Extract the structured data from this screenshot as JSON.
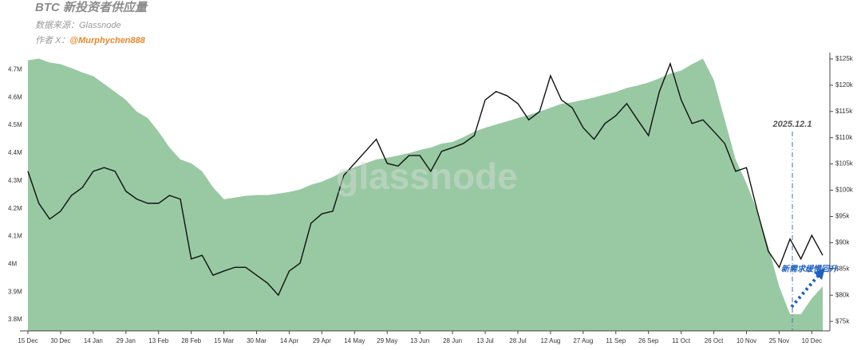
{
  "chart_data": {
    "type": "area",
    "title": "BTC 新投资者供应量",
    "source_label": "数据来源：",
    "source": "Glassnode",
    "author_label": "作者 X：",
    "author": "@Murphychen888",
    "watermark": "glassnode",
    "annotations": [
      "2025.12.1",
      "新需求缓慢回升"
    ],
    "categories": [
      "15 Dec",
      null,
      null,
      "30 Dec",
      null,
      null,
      "14 Jan",
      null,
      null,
      "29 Jan",
      null,
      null,
      "13 Feb",
      null,
      null,
      "28 Feb",
      null,
      null,
      "15 Mar",
      null,
      null,
      "30 Mar",
      null,
      null,
      "14 Apr",
      null,
      null,
      "29 Apr",
      null,
      null,
      "14 May",
      null,
      null,
      "29 May",
      null,
      null,
      "13 Jun",
      null,
      null,
      "28 Jun",
      null,
      null,
      "13 Jul",
      null,
      null,
      "28 Jul",
      null,
      null,
      "12 Aug",
      null,
      null,
      "27 Aug",
      null,
      null,
      "11 Sep",
      null,
      null,
      "26 Sep",
      null,
      null,
      "11 Oct",
      null,
      null,
      "26 Oct",
      null,
      null,
      "10 Nov",
      null,
      null,
      "25 Nov",
      null,
      null,
      "10 Dec",
      null
    ],
    "series": [
      {
        "type": "area",
        "color": "#98c9a3",
        "values": [
          4.734,
          4.74,
          4.726,
          4.72,
          4.706,
          4.69,
          4.677,
          4.649,
          4.62,
          4.591,
          4.549,
          4.526,
          4.477,
          4.42,
          4.377,
          4.363,
          4.334,
          4.277,
          4.234,
          4.24,
          4.246,
          4.249,
          4.249,
          4.254,
          4.26,
          4.269,
          4.286,
          4.297,
          4.314,
          4.334,
          4.349,
          4.363,
          4.377,
          4.383,
          4.391,
          4.4,
          4.411,
          4.42,
          4.434,
          4.44,
          4.457,
          4.477,
          4.491,
          4.503,
          4.514,
          4.526,
          4.537,
          4.549,
          4.563,
          4.577,
          4.583,
          4.591,
          4.6,
          4.611,
          4.62,
          4.634,
          4.643,
          4.654,
          4.669,
          4.686,
          4.697,
          4.72,
          4.74,
          4.663,
          4.52,
          4.377,
          4.291,
          4.191,
          4.063,
          3.92,
          3.82,
          3.82,
          3.877,
          3.92
        ]
      },
      {
        "type": "line",
        "axis": "y2",
        "color": "#111111",
        "values": [
          103.6,
          97.5,
          94.5,
          96.0,
          99.0,
          100.5,
          103.6,
          104.3,
          103.6,
          99.8,
          98.3,
          97.5,
          97.5,
          99.0,
          98.3,
          86.9,
          87.6,
          83.8,
          84.6,
          85.3,
          85.3,
          83.8,
          82.3,
          80.0,
          84.6,
          86.1,
          93.7,
          95.5,
          96.0,
          102.8,
          105.1,
          107.4,
          109.7,
          105.1,
          104.6,
          106.6,
          106.6,
          103.6,
          107.4,
          108.1,
          108.9,
          110.4,
          117.2,
          118.8,
          118.0,
          116.5,
          113.4,
          115.0,
          121.8,
          117.2,
          115.7,
          111.9,
          109.7,
          112.7,
          114.2,
          116.5,
          113.4,
          110.4,
          118.8,
          124.1,
          117.2,
          112.7,
          113.4,
          111.2,
          108.9,
          103.6,
          104.3,
          96.0,
          88.4,
          85.3,
          90.7,
          86.9,
          91.4,
          87.6
        ]
      }
    ],
    "ylim": [
      3.76,
      4.75
    ],
    "yticks": [
      {
        "value": 3.8,
        "label": "3.8M"
      },
      {
        "value": 3.9,
        "label": "3.9M"
      },
      {
        "value": 4,
        "label": "4M"
      },
      {
        "value": 4.1,
        "label": "4.1M"
      },
      {
        "value": 4.2,
        "label": "4.2M"
      },
      {
        "value": 4.3,
        "label": "4.3M"
      },
      {
        "value": 4.4,
        "label": "4.4M"
      },
      {
        "value": 4.5,
        "label": "4.5M"
      },
      {
        "value": 4.6,
        "label": "4.6M"
      },
      {
        "value": 4.7,
        "label": "4.7M"
      }
    ],
    "y2lim": [
      73.2,
      125.6
    ],
    "y2ticks": [
      {
        "value": 75,
        "label": "$75k"
      },
      {
        "value": 80,
        "label": "$80k"
      },
      {
        "value": 85,
        "label": "$85k"
      },
      {
        "value": 90,
        "label": "$90k"
      },
      {
        "value": 95,
        "label": "$95k"
      },
      {
        "value": 100,
        "label": "$100k"
      },
      {
        "value": 105,
        "label": "$105k"
      },
      {
        "value": 110,
        "label": "$110k"
      },
      {
        "value": 115,
        "label": "$115k"
      },
      {
        "value": 120,
        "label": "$120k"
      },
      {
        "value": 125,
        "label": "$125k"
      }
    ],
    "grid": false
  }
}
